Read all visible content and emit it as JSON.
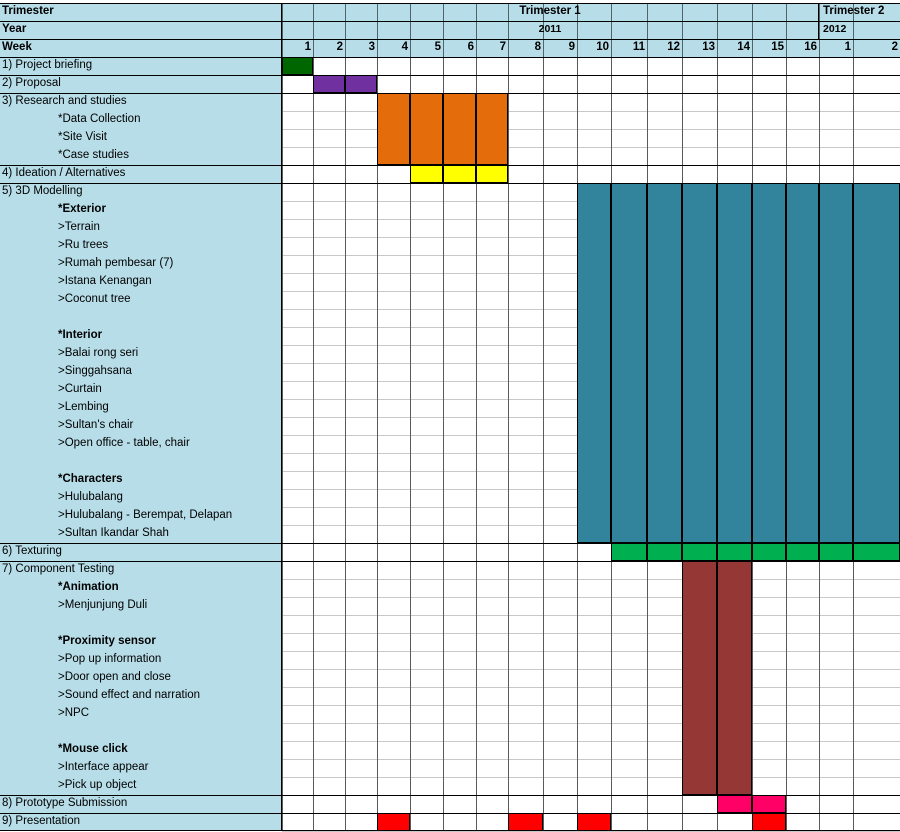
{
  "header": {
    "trimester_label": "Trimester",
    "year_label": "Year",
    "week_label": "Week",
    "trimester1": "Trimester 1",
    "trimester2": "Trimester 2",
    "year1": "2011",
    "year2": "2012",
    "weeks": [
      "1",
      "2",
      "3",
      "4",
      "5",
      "6",
      "7",
      "8",
      "9",
      "10",
      "11",
      "12",
      "13",
      "14",
      "15",
      "16",
      "1",
      "2"
    ]
  },
  "rows": [
    {
      "text": "1) Project briefing",
      "kind": "task"
    },
    {
      "text": "2) Proposal",
      "kind": "task"
    },
    {
      "text": "3) Research and studies",
      "kind": "task"
    },
    {
      "text": "*Data Collection",
      "kind": "sub"
    },
    {
      "text": "*Site Visit",
      "kind": "sub"
    },
    {
      "text": "*Case studies",
      "kind": "sub"
    },
    {
      "text": "4) Ideation / Alternatives",
      "kind": "task"
    },
    {
      "text": "5) 3D Modelling",
      "kind": "task"
    },
    {
      "text": "*Exterior",
      "kind": "group"
    },
    {
      "text": ">Terrain",
      "kind": "item"
    },
    {
      "text": ">Ru trees",
      "kind": "item"
    },
    {
      "text": ">Rumah pembesar (7)",
      "kind": "item"
    },
    {
      "text": ">Istana Kenangan",
      "kind": "item"
    },
    {
      "text": ">Coconut tree",
      "kind": "item"
    },
    {
      "text": "",
      "kind": "blank"
    },
    {
      "text": "*Interior",
      "kind": "group"
    },
    {
      "text": ">Balai rong seri",
      "kind": "item"
    },
    {
      "text": ">Singgahsana",
      "kind": "item"
    },
    {
      "text": ">Curtain",
      "kind": "item"
    },
    {
      "text": ">Lembing",
      "kind": "item"
    },
    {
      "text": ">Sultan's chair",
      "kind": "item"
    },
    {
      "text": ">Open office - table, chair",
      "kind": "item"
    },
    {
      "text": "",
      "kind": "blank"
    },
    {
      "text": "*Characters",
      "kind": "group"
    },
    {
      "text": ">Hulubalang",
      "kind": "item"
    },
    {
      "text": ">Hulubalang - Berempat, Delapan",
      "kind": "item"
    },
    {
      "text": ">Sultan Ikandar Shah",
      "kind": "item"
    },
    {
      "text": "6) Texturing",
      "kind": "task"
    },
    {
      "text": "7) Component Testing",
      "kind": "task"
    },
    {
      "text": "*Animation",
      "kind": "group"
    },
    {
      "text": ">Menjunjung Duli",
      "kind": "item"
    },
    {
      "text": "",
      "kind": "blank"
    },
    {
      "text": "*Proximity sensor",
      "kind": "group"
    },
    {
      "text": ">Pop up information",
      "kind": "item"
    },
    {
      "text": ">Door open and close",
      "kind": "item"
    },
    {
      "text": ">Sound effect and narration",
      "kind": "item"
    },
    {
      "text": ">NPC",
      "kind": "item"
    },
    {
      "text": "",
      "kind": "blank"
    },
    {
      "text": "*Mouse click",
      "kind": "group"
    },
    {
      "text": ">Interface appear",
      "kind": "item"
    },
    {
      "text": ">Pick up object",
      "kind": "item"
    },
    {
      "text": "8) Prototype Submission",
      "kind": "task"
    },
    {
      "text": "9) Presentation",
      "kind": "task"
    }
  ],
  "bars": [
    {
      "task": "Project briefing",
      "row_start": 0,
      "row_end": 0,
      "weeks": [
        1
      ],
      "color": "#006600"
    },
    {
      "task": "Proposal",
      "row_start": 1,
      "row_end": 1,
      "weeks": [
        2,
        3
      ],
      "color": "#7030a0"
    },
    {
      "task": "Research and studies",
      "row_start": 2,
      "row_end": 5,
      "weeks": [
        4,
        5,
        6,
        7
      ],
      "color": "#e46c0a"
    },
    {
      "task": "Ideation / Alternatives",
      "row_start": 6,
      "row_end": 6,
      "weeks": [
        5,
        6,
        7
      ],
      "color": "#ffff00"
    },
    {
      "task": "3D Modelling",
      "row_start": 7,
      "row_end": 26,
      "weeks": [
        10,
        11,
        12,
        13,
        14,
        15,
        16,
        17,
        18
      ],
      "color": "#31849b"
    },
    {
      "task": "Texturing",
      "row_start": 27,
      "row_end": 27,
      "weeks": [
        11,
        12,
        13,
        14,
        15,
        16,
        17,
        18
      ],
      "color": "#00b050"
    },
    {
      "task": "Component Testing",
      "row_start": 28,
      "row_end": 40,
      "weeks": [
        13,
        14
      ],
      "color": "#953735"
    },
    {
      "task": "Prototype Submission",
      "row_start": 41,
      "row_end": 41,
      "weeks": [
        14,
        15
      ],
      "color": "#ff0066"
    },
    {
      "task": "Presentation",
      "row_start": 42,
      "row_end": 42,
      "weeks": [
        4,
        8,
        10,
        15
      ],
      "color": "#ff0000"
    }
  ],
  "section_dividers_after_rows": [
    0,
    1,
    5,
    6,
    26,
    27,
    40,
    41
  ]
}
